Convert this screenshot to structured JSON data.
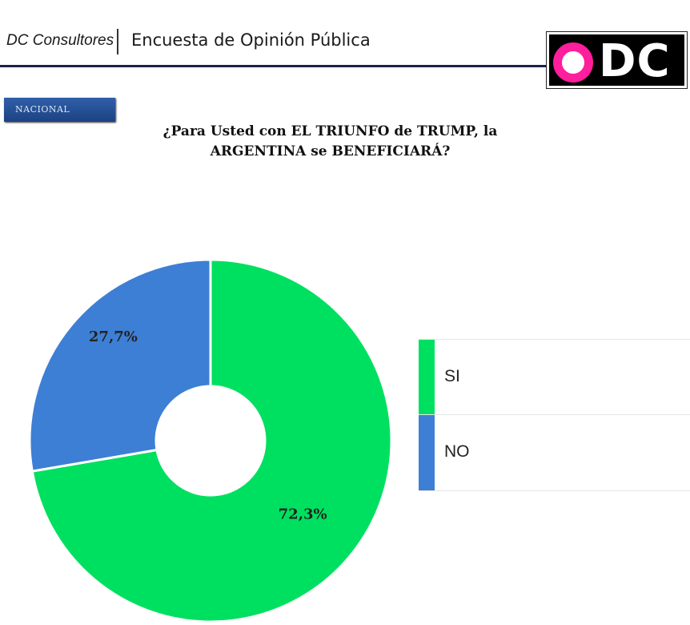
{
  "header": {
    "brand": "DC Consultores",
    "title": "Encuesta de Opinión Pública",
    "logo_text": "DC"
  },
  "badge": "NACIONAL",
  "question_lines": [
    "¿Para Usted con EL TRIUNFO de TRUMP, la",
    "ARGENTINA se BENEFICIARÁ?"
  ],
  "chart_data": {
    "type": "pie",
    "donut": true,
    "categories": [
      "SI",
      "NO"
    ],
    "values": [
      72.3,
      27.7
    ],
    "value_labels": [
      "72,3%",
      "27,7%"
    ],
    "colors": [
      "#00e060",
      "#3d7fd4"
    ],
    "legend": "right"
  }
}
